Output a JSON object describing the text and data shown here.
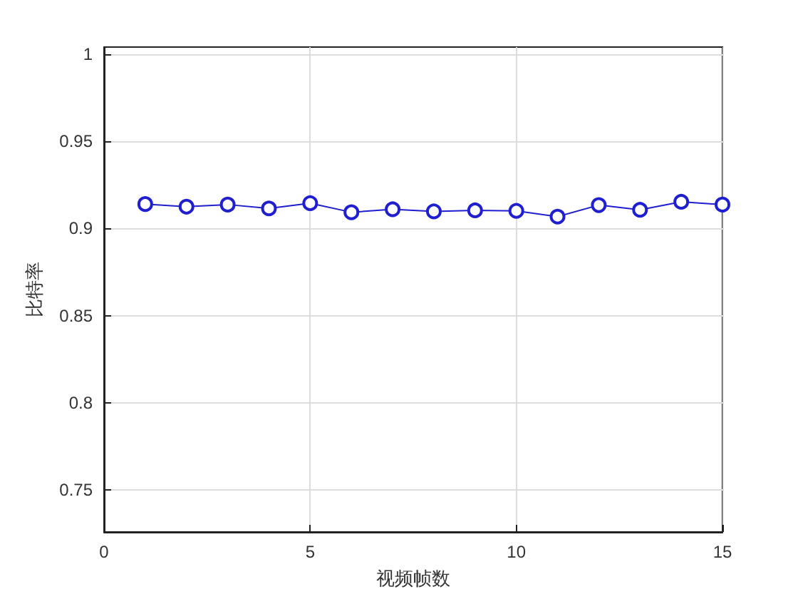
{
  "chart_data": {
    "type": "line",
    "xlabel": "视频帧数",
    "ylabel": "比特率",
    "x": [
      1,
      2,
      3,
      4,
      5,
      6,
      7,
      8,
      9,
      10,
      11,
      12,
      13,
      14,
      15
    ],
    "series": [
      {
        "color": "#1f1fd0",
        "values": [
          0.914,
          0.9125,
          0.9137,
          0.9115,
          0.9145,
          0.9093,
          0.911,
          0.9098,
          0.9104,
          0.9101,
          0.9068,
          0.9134,
          0.9107,
          0.9153,
          0.9137
        ]
      }
    ],
    "xlim": [
      0,
      15
    ],
    "xticks": [
      0,
      5,
      10,
      15
    ],
    "ylim": [
      0.726,
      1.004
    ],
    "yticks": [
      0.75,
      0.8,
      0.85,
      0.9,
      0.95,
      1
    ],
    "grid": true,
    "marker": "circle",
    "line_style": "solid"
  }
}
